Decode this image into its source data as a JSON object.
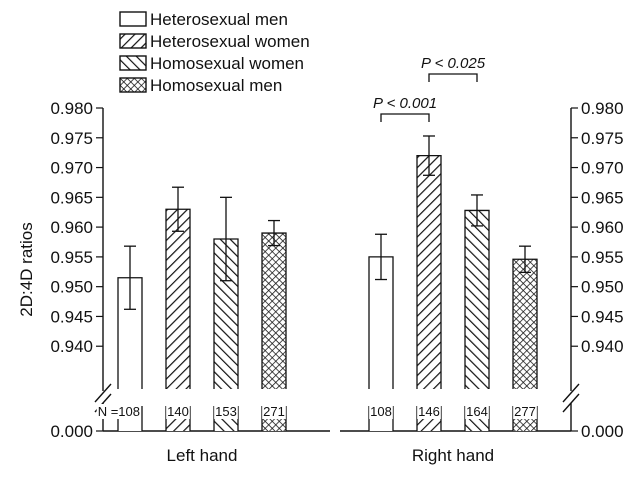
{
  "chart_data": {
    "type": "bar",
    "ylabel": "2D:4D ratios",
    "ylim": [
      0.935,
      0.98
    ],
    "yticks": [
      "0.980",
      "0.975",
      "0.970",
      "0.965",
      "0.960",
      "0.955",
      "0.950",
      "0.945",
      "0.940"
    ],
    "axis_break_value": "0.000",
    "y_axis_both_sides": true,
    "legend": {
      "position": "top-left"
    },
    "categories": [
      "Left hand",
      "Right hand"
    ],
    "series": [
      {
        "name": "Heterosexual men",
        "pattern": "none",
        "values": [
          0.9515,
          0.955
        ],
        "errors": [
          0.0053,
          0.0038
        ],
        "n": [
          "108",
          "108"
        ]
      },
      {
        "name": "Heterosexual women",
        "pattern": "diagonal-up",
        "values": [
          0.963,
          0.972
        ],
        "errors": [
          0.0037,
          0.0033
        ],
        "n": [
          "140",
          "146"
        ]
      },
      {
        "name": "Homosexual women",
        "pattern": "diagonal-down",
        "values": [
          0.958,
          0.9628
        ],
        "errors": [
          0.007,
          0.0026
        ],
        "n": [
          "153",
          "164"
        ]
      },
      {
        "name": "Homosexual men",
        "pattern": "crosshatch",
        "values": [
          0.959,
          0.9546
        ],
        "errors": [
          0.0021,
          0.0022
        ],
        "n": [
          "271",
          "277"
        ]
      }
    ],
    "n_prefix": "N =",
    "annotations": [
      {
        "text": "P < 0.001",
        "between": [
          [
            1,
            0
          ],
          [
            1,
            1
          ]
        ]
      },
      {
        "text": "P < 0.025",
        "between": [
          [
            1,
            1
          ],
          [
            1,
            2
          ]
        ]
      }
    ]
  }
}
